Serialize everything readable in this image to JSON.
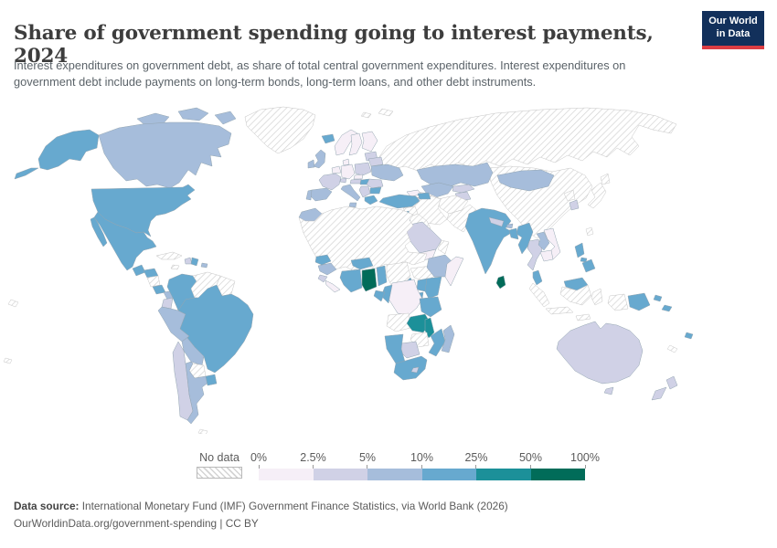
{
  "header": {
    "title": "Share of government spending going to interest payments, 2024",
    "subtitle": "Interest expenditures on government debt, as share of total central government expenditures. Interest expenditures on government debt include payments on long-term bonds, long-term loans, and other debt instruments.",
    "logo": {
      "line1": "Our World",
      "line2": "in Data",
      "bg_color": "#12305b",
      "bar_color": "#dc3d43"
    }
  },
  "legend": {
    "no_data_label": "No data",
    "tick_labels": [
      "0%",
      "2.5%",
      "5%",
      "10%",
      "25%",
      "50%",
      "100%"
    ],
    "bin_colors": [
      "#f6eff7",
      "#d0d1e6",
      "#a6bddb",
      "#67a9cf",
      "#1c9099",
      "#016c59"
    ]
  },
  "footer": {
    "source_label": "Data source:",
    "source_text": " International Monetary Fund (IMF) Government Finance Statistics, via World Bank (2026)",
    "citation": "OurWorldinData.org/government-spending | CC BY"
  },
  "map": {
    "border_color": "#93a5b1",
    "no_data_border": "#c6c6c6",
    "no_data_hatch_color": "#d2d2d2",
    "countries": {
      "russia": "nd",
      "svalbard": "nd",
      "china": "nd",
      "taiwan": "nd",
      "kazakhstan": 2,
      "mongolia": 2,
      "uzbekistan": 2,
      "turkmenistan": "nd",
      "kyrgyzstan": 1,
      "tajikistan": 1,
      "afghanistan": "nd",
      "pakistan": "nd",
      "iran": "nd",
      "georgia": 0,
      "azerbaijan": 3,
      "armenia": 1,
      "turkey": 3,
      "syria": "nd",
      "iraq": "nd",
      "israel-jordan": 3,
      "saudi-arabia": 1,
      "yemen": 0,
      "oman": "nd",
      "iceland": 3,
      "norway": 0,
      "sweden": 0,
      "finland": 0,
      "baltics": 1,
      "denmark": 0,
      "uk": 2,
      "ireland": 2,
      "netherlands-belgium": 0,
      "germany": 0,
      "poland": 1,
      "belarus": 1,
      "ukraine": 2,
      "france": 1,
      "spain": 2,
      "portugal": 2,
      "switzerland": 1,
      "czechia": 0,
      "austria": 1,
      "hungary": 3,
      "romania": 1,
      "italy": 2,
      "balkans": 1,
      "bulgaria": 3,
      "greece": 3,
      "morocco": 2,
      "sahara": "nd",
      "senegal": 3,
      "guinea": 2,
      "sierra-leone": 1,
      "liberia": 0,
      "cote-divoire": 3,
      "ghana": 5,
      "togo-benin": 3,
      "burkina-faso": 3,
      "nigeria": "nd",
      "cameroon": 3,
      "central-african-republic": "nd",
      "ethiopia": 2,
      "somalia": 0,
      "kenya": 3,
      "uganda": 3,
      "rwanda-burundi": 3,
      "drc": 0,
      "congo": 3,
      "gabon": 3,
      "tanzania": 3,
      "angola": "nd",
      "zambia": 4,
      "malawi": 4,
      "mozambique": 3,
      "zimbabwe": "nd",
      "botswana": 1,
      "namibia": 3,
      "south-africa": 3,
      "lesotho": 1,
      "madagascar": 2,
      "india": 3,
      "nepal": 1,
      "bhutan": 2,
      "bangladesh": 3,
      "sri-lanka": 5,
      "myanmar": 3,
      "thailand": 1,
      "laos": 2,
      "vietnam": 0,
      "cambodia": 0,
      "malaysia": 3,
      "indonesia": "nd",
      "papua-new-guinea": 3,
      "solomon-islands": 3,
      "philippines": 3,
      "south-korea": 1,
      "north-korea": "nd",
      "japan": "nd",
      "australia": 1,
      "new-zealand": 1,
      "fiji": 3,
      "new-caledonia": "nd",
      "greenland": "nd",
      "canadian-arctic": 2,
      "canada": 2,
      "usa": 3,
      "mexico": 3,
      "guatemala": 3,
      "honduras": 3,
      "nicaragua": "nd",
      "costa-rica": 3,
      "panama": 2,
      "cuba": "nd",
      "jamaica": "nd",
      "haiti": 1,
      "dominican-republic": 3,
      "puerto-rico": 2,
      "pacific-islands": "nd",
      "colombia": 3,
      "venezuela": "nd",
      "guyanas": "nd",
      "ecuador": 1,
      "peru": 2,
      "brazil": 3,
      "bolivia": 2,
      "paraguay": "nd",
      "chile": 1,
      "argentina": 2,
      "uruguay": 3,
      "falkland-islands": "nd"
    }
  }
}
